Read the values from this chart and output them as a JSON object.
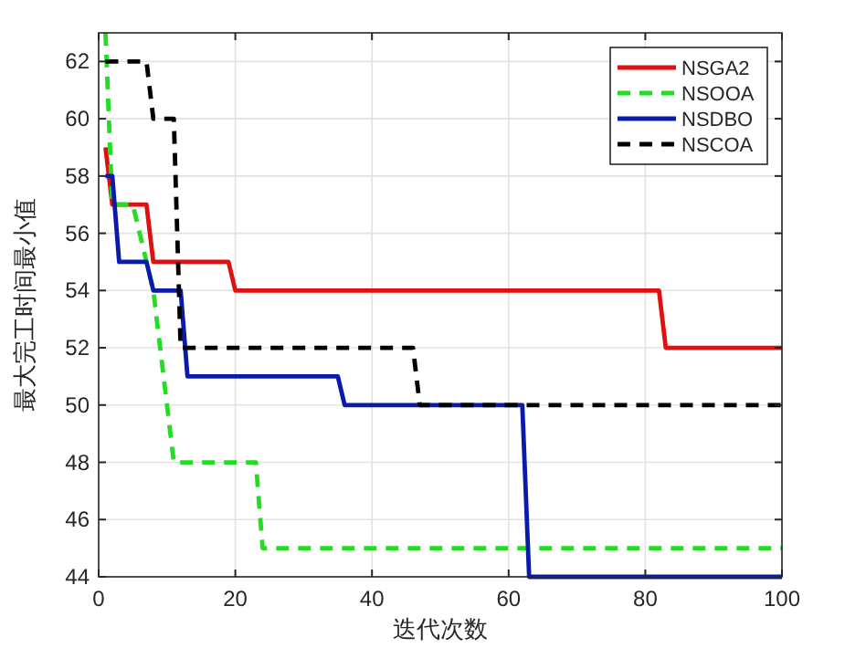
{
  "chart_data": {
    "type": "line",
    "xlabel": "迭代次数",
    "ylabel": "最大完工时间最小值",
    "xlim": [
      0,
      100
    ],
    "xticks": [
      0,
      20,
      40,
      60,
      80,
      100
    ],
    "ylim": [
      44,
      63
    ],
    "yticks": [
      44,
      46,
      48,
      50,
      52,
      54,
      56,
      58,
      60,
      62
    ],
    "grid": true,
    "legend": "top right",
    "series": [
      {
        "name": "NSGA2",
        "color": "#dd1111",
        "line_style": "solid",
        "x": [
          1,
          2,
          7,
          8,
          19,
          20,
          82,
          83,
          100
        ],
        "values": [
          59,
          57,
          57,
          55,
          55,
          54,
          54,
          52,
          52
        ]
      },
      {
        "name": "NSOOA",
        "color": "#22dd22",
        "line_style": "dashed",
        "x": [
          1,
          2,
          5,
          8,
          11,
          23,
          24,
          100
        ],
        "values": [
          63,
          57,
          57,
          54,
          48,
          48,
          45,
          45
        ]
      },
      {
        "name": "NSDBO",
        "color": "#0a1aaa",
        "line_style": "solid",
        "x": [
          1,
          2,
          3,
          7,
          8,
          12,
          13,
          35,
          36,
          62,
          63,
          100
        ],
        "values": [
          58,
          58,
          55,
          55,
          54,
          54,
          51,
          51,
          50,
          50,
          44,
          44
        ]
      },
      {
        "name": "NSCOA",
        "color": "#000000",
        "line_style": "dashed",
        "x": [
          1,
          7,
          8,
          11,
          12,
          46,
          47,
          100
        ],
        "values": [
          62,
          62,
          60,
          60,
          52,
          52,
          50,
          50
        ]
      }
    ]
  }
}
